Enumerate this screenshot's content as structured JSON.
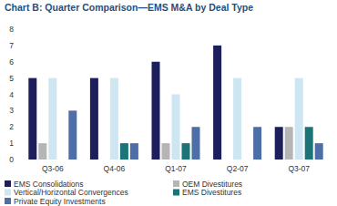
{
  "chart_data": {
    "type": "bar",
    "title": "Chart B: Quarter Comparison—EMS M&A by Deal Type",
    "categories": [
      "Q3-06",
      "Q4-06",
      "Q1-07",
      "Q2-07",
      "Q3-07"
    ],
    "series": [
      {
        "name": "EMS Consolidations",
        "color": "#1c1f5c",
        "values": [
          5,
          5,
          6,
          7,
          2
        ]
      },
      {
        "name": "OEM Divestitures",
        "color": "#b5b5b5",
        "values": [
          1,
          0,
          1,
          0,
          2
        ]
      },
      {
        "name": "Vertical/Horizontal Convergences",
        "color": "#cde6f2",
        "values": [
          5,
          5,
          4,
          5,
          5
        ]
      },
      {
        "name": "EMS Divestitures",
        "color": "#1b7576",
        "values": [
          0,
          1,
          1,
          0,
          2
        ]
      },
      {
        "name": "Private Equity Investments",
        "color": "#4d6ea6",
        "values": [
          3,
          1,
          2,
          2,
          1
        ]
      }
    ],
    "ylim": [
      0,
      8
    ],
    "yticks": [
      0,
      1,
      2,
      3,
      4,
      5,
      6,
      7,
      8
    ],
    "grid": false,
    "legend": "bottom"
  }
}
